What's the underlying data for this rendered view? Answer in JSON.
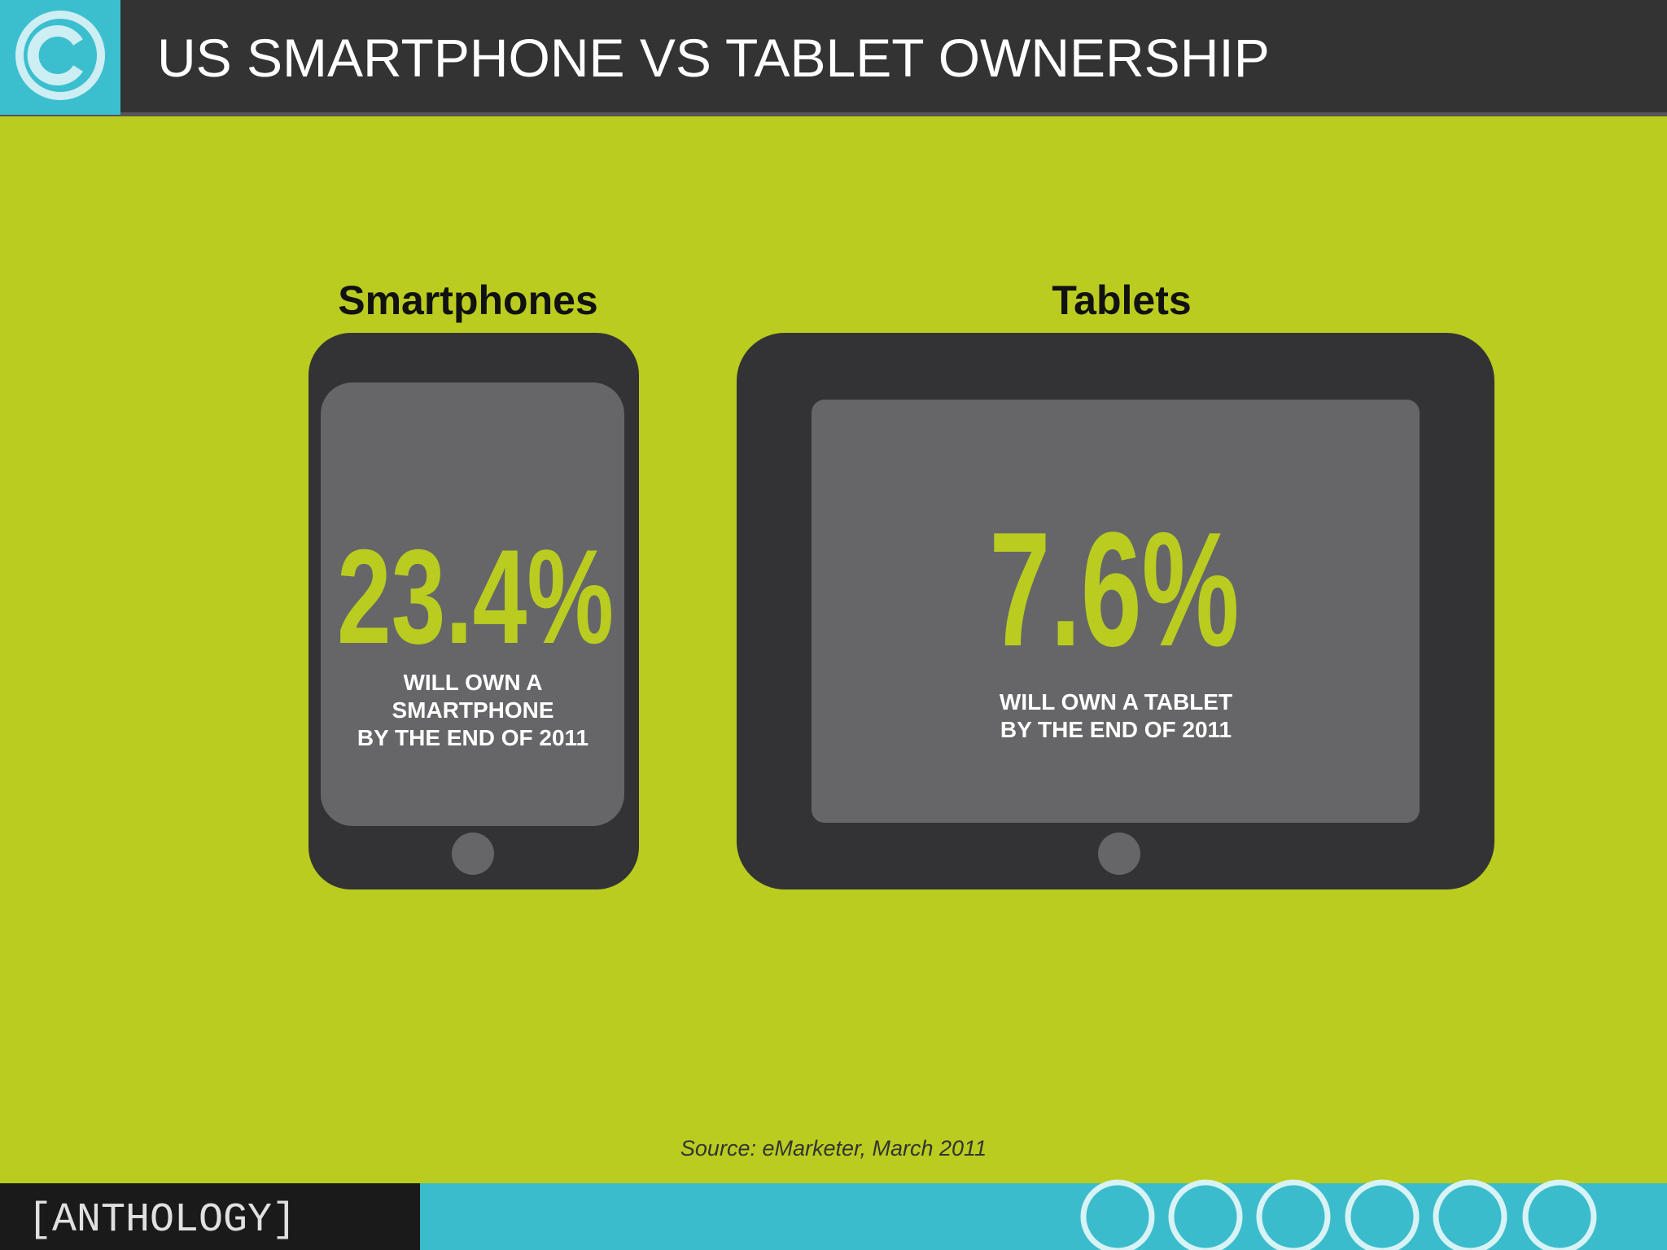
{
  "header": {
    "title": "US SMARTPHONE VS TABLET OWNERSHIP"
  },
  "panels": [
    {
      "label": "Smartphones",
      "stat": "23.4%",
      "caption": [
        "WILL OWN A",
        "SMARTPHONE",
        "BY THE END OF 2011"
      ]
    },
    {
      "label": "Tablets",
      "stat": "7.6%",
      "caption": [
        "WILL OWN A TABLET",
        "BY THE END OF 2011"
      ]
    }
  ],
  "source": "Source: eMarketer, March 2011",
  "footer": {
    "brand": "[ANTHOLOGY]"
  }
}
